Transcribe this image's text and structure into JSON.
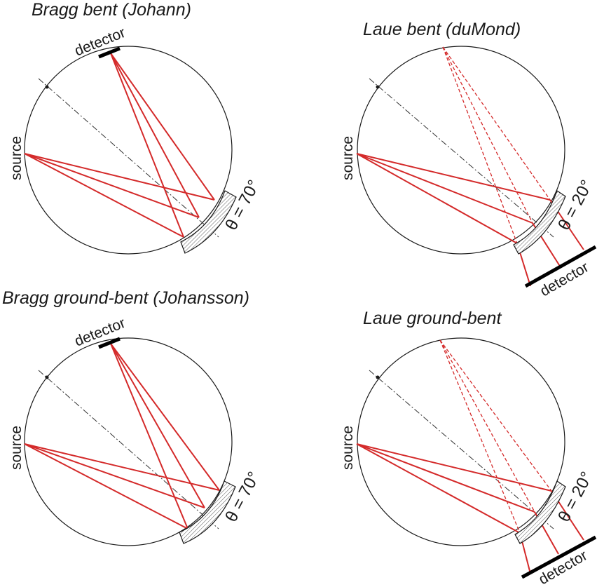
{
  "colors": {
    "ray": "#d42a2a",
    "ray_virtual": "#d42a2a",
    "outline": "#1a1a1a"
  },
  "panels": [
    {
      "title": "Bragg bent (Johann)",
      "source_label": "source",
      "detector_label": "detector",
      "angle_label": "θ = 70°"
    },
    {
      "title": "Laue bent (duMond)",
      "source_label": "source",
      "detector_label": "detector",
      "angle_label": "θ = 20°"
    },
    {
      "title": "Bragg ground-bent (Johansson)",
      "source_label": "source",
      "detector_label": "detector",
      "angle_label": "θ = 70°"
    },
    {
      "title": "Laue ground-bent",
      "source_label": "source",
      "detector_label": "detector",
      "angle_label": "θ = 20°"
    }
  ]
}
